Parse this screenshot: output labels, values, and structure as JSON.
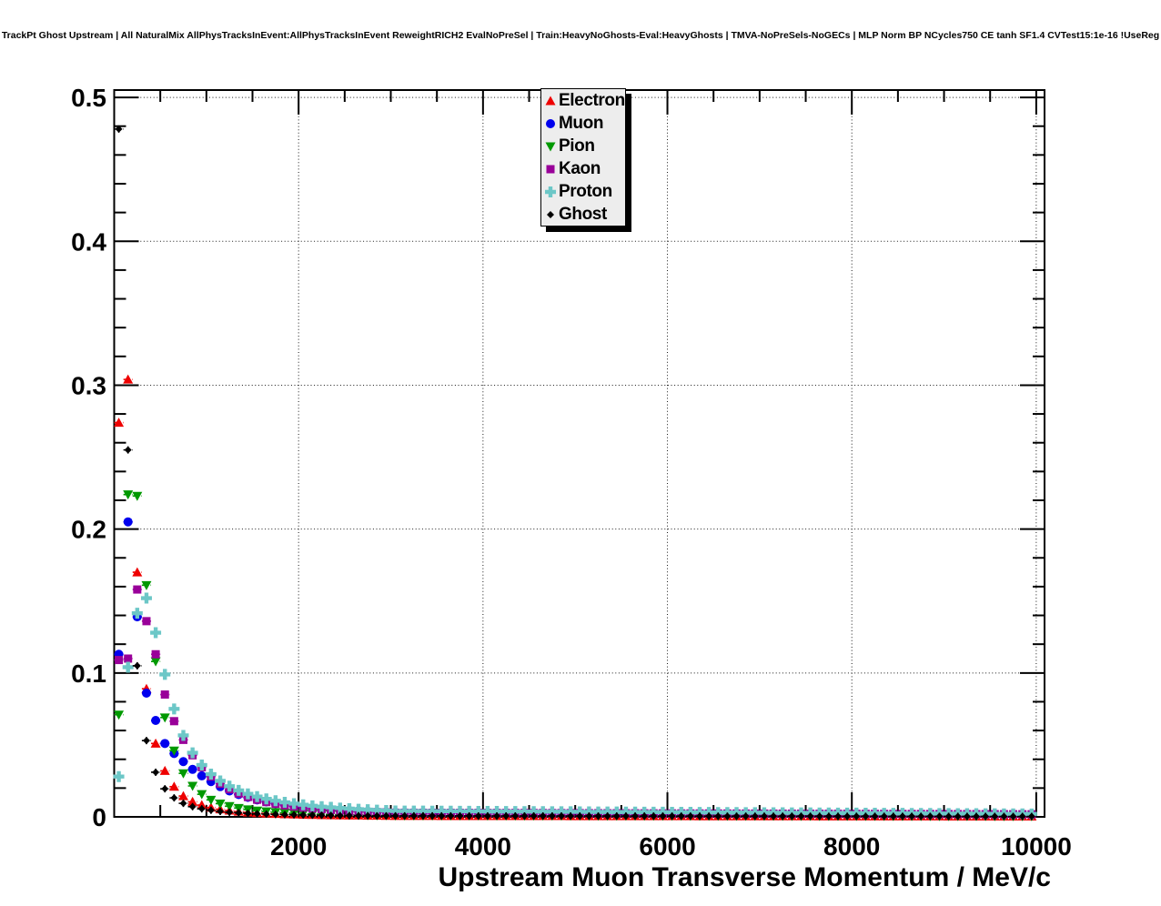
{
  "canvas_title": "TrackPt Ghost Upstream | All NaturalMix AllPhysTracksInEvent:AllPhysTracksInEvent ReweightRICH2 EvalNoPreSel | Train:HeavyNoGhosts-Eval:HeavyGhosts | TMVA-NoPreSels-NoGECs | MLP Norm BP NCycles750 CE tanh SF1.4 CVTest15:1e-16 !UseReg",
  "chart_data": {
    "type": "scatter",
    "title": "",
    "xlabel": "Upstream Muon Transverse Momentum / MeV/c",
    "ylabel": "",
    "xlim": [
      0,
      10090
    ],
    "ylim": [
      0,
      0.5051
    ],
    "x_major_ticks": [
      2000,
      4000,
      6000,
      8000,
      10000
    ],
    "x_tick_labels": [
      "2000",
      "4000",
      "6000",
      "8000",
      "10000"
    ],
    "x_minor_step": 500,
    "y_major_ticks": [
      0,
      0.1,
      0.2,
      0.3,
      0.4,
      0.5
    ],
    "y_tick_labels": [
      "0",
      "0.1",
      "0.2",
      "0.3",
      "0.4",
      "0.5"
    ],
    "y_minor_step": 0.02,
    "grid": "dotted-on-major-divisions",
    "legend_position": "top-center",
    "bin_width": 100,
    "x_start": 50,
    "x_step": 100,
    "series": [
      {
        "name": "Electron",
        "color": "#ee0000",
        "marker": "triangle-up",
        "values": [
          0.274,
          0.304,
          0.17,
          0.089,
          0.051,
          0.032,
          0.021,
          0.0145,
          0.0105,
          0.0082,
          0.0065,
          0.0053,
          0.0044,
          0.0037,
          0.0031,
          0.0027,
          0.0024,
          0.0021,
          0.0019,
          0.0017,
          0.0015,
          0.0014,
          0.0013,
          0.0012,
          0.0011,
          0.001,
          0.001,
          0.0009,
          0.0009,
          0.0008
        ],
        "tail": {
          "x_from": 3050,
          "x_to": 9950,
          "step": 100,
          "value_from": 0.0007,
          "value_to": 0.0003
        }
      },
      {
        "name": "Muon",
        "color": "#0000ee",
        "marker": "circle",
        "values": [
          0.113,
          0.205,
          0.139,
          0.086,
          0.067,
          0.051,
          0.044,
          0.0384,
          0.033,
          0.0285,
          0.0245,
          0.021,
          0.018,
          0.0155,
          0.0135,
          0.0118,
          0.0104,
          0.0092,
          0.0082,
          0.0074,
          0.0067,
          0.0061,
          0.0056,
          0.0052,
          0.0048,
          0.0044,
          0.0041,
          0.0038,
          0.0035,
          0.0033
        ],
        "tail": {
          "x_from": 3050,
          "x_to": 9950,
          "step": 100,
          "value_from": 0.0031,
          "value_to": 0.0016
        }
      },
      {
        "name": "Pion",
        "color": "#009900",
        "marker": "triangle-down",
        "values": [
          0.071,
          0.224,
          0.223,
          0.161,
          0.108,
          0.069,
          0.046,
          0.0302,
          0.0215,
          0.0157,
          0.0118,
          0.0092,
          0.0074,
          0.0061,
          0.0051,
          0.0043,
          0.0037,
          0.0032,
          0.0028,
          0.0025,
          0.0022,
          0.002,
          0.0018,
          0.0016,
          0.0015,
          0.0013,
          0.0012,
          0.0011,
          0.001,
          0.001
        ],
        "tail": {
          "x_from": 3050,
          "x_to": 9950,
          "step": 100,
          "value_from": 0.0009,
          "value_to": 0.0004
        }
      },
      {
        "name": "Kaon",
        "color": "#990099",
        "marker": "square",
        "values": [
          0.109,
          0.11,
          0.158,
          0.136,
          0.113,
          0.085,
          0.0665,
          0.0535,
          0.0428,
          0.0345,
          0.028,
          0.023,
          0.0192,
          0.0162,
          0.0138,
          0.0119,
          0.0103,
          0.009,
          0.008,
          0.0071,
          0.0064,
          0.0058,
          0.0053,
          0.0048,
          0.0044,
          0.0041,
          0.0038,
          0.0035,
          0.0033,
          0.0031
        ],
        "tail": {
          "x_from": 3050,
          "x_to": 9950,
          "step": 100,
          "value_from": 0.0029,
          "value_to": 0.0018
        }
      },
      {
        "name": "Proton",
        "color": "#6cc7c7",
        "marker": "cross",
        "values": [
          0.028,
          0.104,
          0.1415,
          0.152,
          0.128,
          0.099,
          0.075,
          0.0566,
          0.0445,
          0.036,
          0.0297,
          0.025,
          0.0213,
          0.0184,
          0.016,
          0.0141,
          0.0125,
          0.0112,
          0.0101,
          0.0092,
          0.0084,
          0.0077,
          0.0071,
          0.0066,
          0.0061,
          0.0057,
          0.0053,
          0.005,
          0.0047,
          0.0044
        ],
        "tail": {
          "x_from": 3050,
          "x_to": 9950,
          "step": 100,
          "value_from": 0.0041,
          "value_to": 0.002
        }
      },
      {
        "name": "Ghost",
        "color": "#000000",
        "marker": "diamond",
        "values": [
          0.478,
          0.255,
          0.105,
          0.053,
          0.031,
          0.0195,
          0.0132,
          0.0094,
          0.0071,
          0.0056,
          0.0046,
          0.0038,
          0.0032,
          0.0028,
          0.0024,
          0.0021,
          0.0019,
          0.0017,
          0.0015,
          0.0014,
          0.0013,
          0.0012,
          0.0011,
          0.001,
          0.0009,
          0.0009,
          0.0008,
          0.0008,
          0.0007,
          0.0007
        ],
        "tail": {
          "x_from": 3050,
          "x_to": 9950,
          "step": 100,
          "value_from": 0.0007,
          "value_to": 0.0003
        }
      }
    ]
  },
  "style_colors": {
    "frame": "#000000",
    "grid": "#000000",
    "legend_fill": "#ededed",
    "legend_shadow": "#000000",
    "background": "#ffffff"
  }
}
